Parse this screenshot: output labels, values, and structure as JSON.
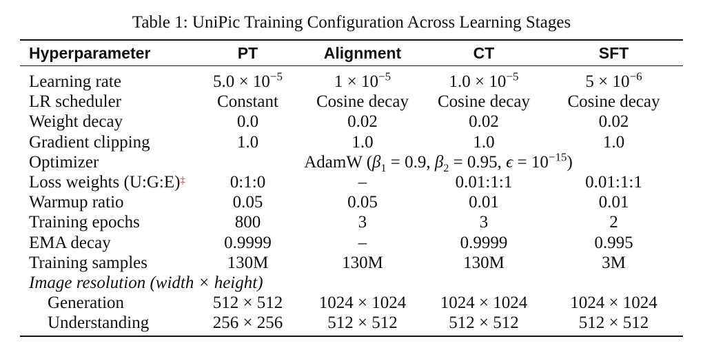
{
  "caption": "Table 1: UniPic Training Configuration Across Learning Stages",
  "table": {
    "headers": [
      "Hyperparameter",
      "PT",
      "Alignment",
      "CT",
      "SFT"
    ],
    "rows": {
      "learning_rate": {
        "label": "Learning rate",
        "pt": "5.0 × 10",
        "pt_exp": "−5",
        "alignment": "1 × 10",
        "alignment_exp": "−5",
        "ct": "1.0 × 10",
        "ct_exp": "−5",
        "sft": "5 × 10",
        "sft_exp": "−6"
      },
      "lr_scheduler": {
        "label": "LR scheduler",
        "pt": "Constant",
        "alignment": "Cosine decay",
        "ct": "Cosine decay",
        "sft": "Cosine decay"
      },
      "weight_decay": {
        "label": "Weight decay",
        "pt": "0.0",
        "alignment": "0.02",
        "ct": "0.02",
        "sft": "0.02"
      },
      "gradient_clipping": {
        "label": "Gradient clipping",
        "pt": "1.0",
        "alignment": "1.0",
        "ct": "1.0",
        "sft": "1.0"
      },
      "optimizer": {
        "label": "Optimizer",
        "name": "AdamW",
        "beta1_symbol": "β",
        "beta1_sub": "1",
        "beta1_value": "= 0.9,",
        "beta2_symbol": "β",
        "beta2_sub": "2",
        "beta2_value": "= 0.95,",
        "epsilon_symbol": "ϵ",
        "epsilon_value": "= 10",
        "epsilon_exp": "−15"
      },
      "loss_weights": {
        "label": "Loss weights (U:G:E)",
        "marker": "‡",
        "pt": "0:1:0",
        "alignment": "–",
        "ct": "0.01:1:1",
        "sft": "0.01:1:1"
      },
      "warmup_ratio": {
        "label": "Warmup ratio",
        "pt": "0.05",
        "alignment": "0.05",
        "ct": "0.01",
        "sft": "0.01"
      },
      "training_epochs": {
        "label": "Training epochs",
        "pt": "800",
        "alignment": "3",
        "ct": "3",
        "sft": "2"
      },
      "ema_decay": {
        "label": "EMA decay",
        "pt": "0.9999",
        "alignment": "–",
        "ct": "0.9999",
        "sft": "0.995"
      },
      "training_samples": {
        "label": "Training samples",
        "pt": "130M",
        "alignment": "130M",
        "ct": "130M",
        "sft": "3M"
      },
      "image_resolution": {
        "label": "Image resolution (width × height)"
      },
      "generation": {
        "label": "Generation",
        "pt": "512 × 512",
        "alignment": "1024 × 1024",
        "ct": "1024 × 1024",
        "sft": "1024 × 1024"
      },
      "understanding": {
        "label": "Understanding",
        "pt": "256 × 256",
        "alignment": "512 × 512",
        "ct": "512 × 512",
        "sft": "512 × 512"
      }
    }
  }
}
